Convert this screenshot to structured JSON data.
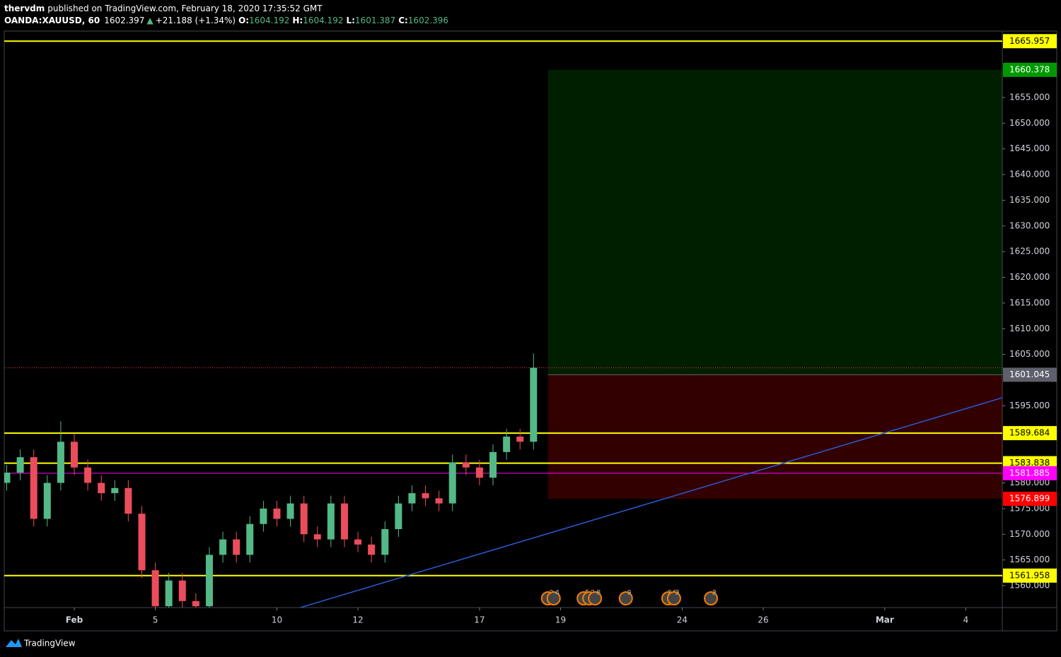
{
  "header": {
    "author": "thervdm",
    "published": "published on TradingView.com, February 18, 2020 17:35:52 GMT",
    "symbol": "OANDA:XAUUSD, 60",
    "last": "1602.397",
    "arrow": "▲",
    "change": "+21.188 (+1.34%)",
    "ohlc": [
      {
        "key": "O:",
        "value": "1604.192"
      },
      {
        "key": "H:",
        "value": "1604.192"
      },
      {
        "key": "L:",
        "value": "1601.387"
      },
      {
        "key": "C:",
        "value": "1602.396"
      }
    ]
  },
  "chart_data": {
    "type": "candlestick",
    "x": [
      -1.667,
      -1.333,
      -1,
      -0.667,
      -0.333,
      0,
      0.333,
      0.667,
      1,
      1.333,
      1.667,
      2,
      2.333,
      2.667,
      3,
      3.333,
      3.667,
      4,
      4.333,
      4.667,
      5,
      5.333,
      5.667,
      6,
      6.333,
      6.667,
      7,
      7.333,
      7.667,
      8,
      8.333,
      8.667,
      9,
      9.333,
      9.667,
      10,
      10.333,
      10.667,
      11,
      11.333
    ],
    "open": [
      1580,
      1582,
      1585,
      1573,
      1580,
      1588,
      1583,
      1580,
      1578,
      1579,
      1574,
      1563,
      1556,
      1561,
      1557,
      1556,
      1566,
      1569,
      1566,
      1572,
      1575,
      1573,
      1576,
      1570,
      1569,
      1576,
      1569,
      1568,
      1566,
      1571,
      1576,
      1578,
      1577,
      1576,
      1584,
      1583,
      1581,
      1586,
      1589,
      1588
    ],
    "high": [
      1583.5,
      1586.5,
      1586.5,
      1581.5,
      1592,
      1589.5,
      1584.5,
      1581.5,
      1580.5,
      1580.5,
      1575.5,
      1564.5,
      1562.5,
      1562.5,
      1558.5,
      1567.5,
      1570.5,
      1570.5,
      1573.5,
      1576.5,
      1576.5,
      1577.5,
      1577.5,
      1571.5,
      1577.5,
      1577.5,
      1570.5,
      1569.5,
      1572.5,
      1577.5,
      1579.5,
      1579.5,
      1578.5,
      1585.5,
      1585.5,
      1584.5,
      1587.5,
      1590.5,
      1590.5,
      1605.2
    ],
    "low": [
      1578.5,
      1580.5,
      1571.5,
      1571.5,
      1578.5,
      1581.5,
      1578.5,
      1576.5,
      1576.5,
      1572.5,
      1561.5,
      1554.5,
      1554.5,
      1555.5,
      1554.5,
      1554.5,
      1564.5,
      1564.5,
      1564.5,
      1570.5,
      1571.5,
      1571.5,
      1568.5,
      1567.5,
      1567.5,
      1567.5,
      1566.5,
      1564.5,
      1564.5,
      1569.5,
      1574.5,
      1575.5,
      1574.5,
      1574.5,
      1581.5,
      1579.5,
      1579.5,
      1584.5,
      1586.5,
      1586.5
    ],
    "close": [
      1582,
      1585,
      1573,
      1580,
      1588,
      1583,
      1580,
      1578,
      1579,
      1574,
      1563,
      1556,
      1561,
      1557,
      1556,
      1566,
      1569,
      1566,
      1572,
      1575,
      1573,
      1576,
      1570,
      1569,
      1576,
      1569,
      1568,
      1566,
      1571,
      1576,
      1578,
      1577,
      1576,
      1584,
      1583,
      1581,
      1586,
      1589,
      1588,
      1602.4
    ],
    "up_color": "#53b987",
    "down_color": "#eb4d5c",
    "xlim": [
      -1.728,
      22.9
    ],
    "xticks": [
      {
        "value": 0,
        "label": "Feb"
      },
      {
        "value": 2,
        "label": "5"
      },
      {
        "value": 5,
        "label": "10"
      },
      {
        "value": 7,
        "label": "12"
      },
      {
        "value": 10,
        "label": "17"
      },
      {
        "value": 12,
        "label": "19"
      },
      {
        "value": 15,
        "label": "24"
      },
      {
        "value": 17,
        "label": "26"
      },
      {
        "value": 20,
        "label": "Mar"
      },
      {
        "value": 22,
        "label": "4"
      }
    ],
    "ylim": [
      1555.74,
      1667.92
    ],
    "yticks": [
      {
        "value": 1560,
        "label": "1560.000"
      },
      {
        "value": 1565,
        "label": "1565.000"
      },
      {
        "value": 1570,
        "label": "1570.000"
      },
      {
        "value": 1575,
        "label": "1575.000"
      },
      {
        "value": 1580,
        "label": "1580.000"
      },
      {
        "value": 1595,
        "label": "1595.000"
      },
      {
        "value": 1605,
        "label": "1605.000"
      },
      {
        "value": 1610,
        "label": "1610.000"
      },
      {
        "value": 1615,
        "label": "1615.000"
      },
      {
        "value": 1620,
        "label": "1620.000"
      },
      {
        "value": 1625,
        "label": "1625.000"
      },
      {
        "value": 1630,
        "label": "1630.000"
      },
      {
        "value": 1635,
        "label": "1635.000"
      },
      {
        "value": 1640,
        "label": "1640.000"
      },
      {
        "value": 1645,
        "label": "1645.000"
      },
      {
        "value": 1650,
        "label": "1650.000"
      },
      {
        "value": 1655,
        "label": "1655.000"
      }
    ],
    "levels": [
      {
        "value": 1665.957,
        "color": "#ffff00",
        "width": 2
      },
      {
        "value": 1589.684,
        "color": "#ffff00",
        "width": 2
      },
      {
        "value": 1583.838,
        "color": "#ffff00",
        "width": 2
      },
      {
        "value": 1561.958,
        "color": "#ffff00",
        "width": 2
      },
      {
        "value": 1581.885,
        "color": "#ff00ff",
        "width": 1
      }
    ],
    "last_price": {
      "value": 1602.397,
      "color": "#f23645"
    },
    "position": {
      "start": 11.69,
      "target": 1660.378,
      "entry": 1601.045,
      "stop": 1576.899,
      "target_color": "#009900",
      "entry_color": "#5d606b",
      "stop_color": "#ff0000"
    },
    "trend_line": {
      "x": [
        5.58,
        22.9
      ],
      "y": [
        1555.74,
        1596.57
      ],
      "color": "#2a5bd7"
    },
    "events": [
      {
        "x": 11.69,
        "labels": [
          "2",
          "4"
        ]
      },
      {
        "x": 12.57,
        "labels": [
          "5",
          "2",
          "8"
        ]
      },
      {
        "x": 13.61,
        "labels": [
          "9"
        ]
      },
      {
        "x": 14.66,
        "labels": [
          "24",
          "3"
        ]
      },
      {
        "x": 15.71,
        "labels": [
          "3"
        ]
      }
    ]
  },
  "footer": {
    "brand": "TradingView"
  }
}
